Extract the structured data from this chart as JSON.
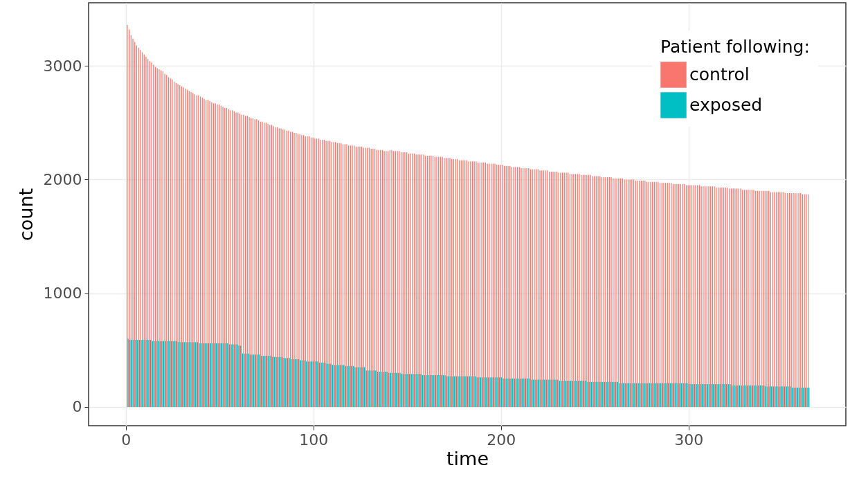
{
  "chart_data": {
    "type": "bar",
    "xlabel": "time",
    "ylabel": "count",
    "legend_title": "Patient following:",
    "legend": "top right",
    "grid": true,
    "xlim": [
      -18,
      382
    ],
    "xticks": [
      0,
      100,
      200,
      300
    ],
    "ylim": [
      -165,
      3555
    ],
    "yticks": [
      0,
      1000,
      2000,
      3000
    ],
    "x": [
      1,
      2,
      3,
      4,
      5,
      6,
      7,
      8,
      9,
      10,
      11,
      12,
      13,
      14,
      15,
      16,
      17,
      18,
      19,
      20,
      21,
      22,
      23,
      24,
      25,
      26,
      27,
      28,
      29,
      30,
      31,
      32,
      33,
      34,
      35,
      36,
      37,
      38,
      39,
      40,
      41,
      42,
      43,
      44,
      45,
      46,
      47,
      48,
      49,
      50,
      51,
      52,
      53,
      54,
      55,
      56,
      57,
      58,
      59,
      60,
      61,
      62,
      63,
      64,
      65,
      66,
      67,
      68,
      69,
      70,
      71,
      72,
      73,
      74,
      75,
      76,
      77,
      78,
      79,
      80,
      81,
      82,
      83,
      84,
      85,
      86,
      87,
      88,
      89,
      90,
      91,
      92,
      93,
      94,
      95,
      96,
      97,
      98,
      99,
      100,
      101,
      102,
      103,
      104,
      105,
      106,
      107,
      108,
      109,
      110,
      111,
      112,
      113,
      114,
      115,
      116,
      117,
      118,
      119,
      120,
      121,
      122,
      123,
      124,
      125,
      126,
      127,
      128,
      129,
      130,
      131,
      132,
      133,
      134,
      135,
      136,
      137,
      138,
      139,
      140,
      141,
      142,
      143,
      144,
      145,
      146,
      147,
      148,
      149,
      150,
      151,
      152,
      153,
      154,
      155,
      156,
      157,
      158,
      159,
      160,
      161,
      162,
      163,
      164,
      165,
      166,
      167,
      168,
      169,
      170,
      171,
      172,
      173,
      174,
      175,
      176,
      177,
      178,
      179,
      180,
      181,
      182,
      183,
      184,
      185,
      186,
      187,
      188,
      189,
      190,
      191,
      192,
      193,
      194,
      195,
      196,
      197,
      198,
      199,
      200,
      201,
      202,
      203,
      204,
      205,
      206,
      207,
      208,
      209,
      210,
      211,
      212,
      213,
      214,
      215,
      216,
      217,
      218,
      219,
      220,
      221,
      222,
      223,
      224,
      225,
      226,
      227,
      228,
      229,
      230,
      231,
      232,
      233,
      234,
      235,
      236,
      237,
      238,
      239,
      240,
      241,
      242,
      243,
      244,
      245,
      246,
      247,
      248,
      249,
      250,
      251,
      252,
      253,
      254,
      255,
      256,
      257,
      258,
      259,
      260,
      261,
      262,
      263,
      264,
      265,
      266,
      267,
      268,
      269,
      270,
      271,
      272,
      273,
      274,
      275,
      276,
      277,
      278,
      279,
      280,
      281,
      282,
      283,
      284,
      285,
      286,
      287,
      288,
      289,
      290,
      291,
      292,
      293,
      294,
      295,
      296,
      297,
      298,
      299,
      300,
      301,
      302,
      303,
      304,
      305,
      306,
      307,
      308,
      309,
      310,
      311,
      312,
      313,
      314,
      315,
      316,
      317,
      318,
      319,
      320,
      321,
      322,
      323,
      324,
      325,
      326,
      327,
      328,
      329,
      330,
      331,
      332,
      333,
      334,
      335,
      336,
      337,
      338,
      339,
      340,
      341,
      342,
      343,
      344,
      345,
      346,
      347,
      348,
      349,
      350,
      351,
      352,
      353,
      354,
      355,
      356,
      357,
      358,
      359,
      360,
      361,
      362,
      363,
      364
    ],
    "series": [
      {
        "name": "control",
        "color": "#f8766d",
        "values": [
          3360,
          3320,
          3270,
          3240,
          3210,
          3180,
          3160,
          3140,
          3120,
          3100,
          3080,
          3060,
          3040,
          3030,
          3010,
          2990,
          2980,
          2970,
          2960,
          2950,
          2930,
          2920,
          2900,
          2890,
          2880,
          2860,
          2850,
          2840,
          2830,
          2820,
          2810,
          2800,
          2790,
          2780,
          2770,
          2760,
          2750,
          2740,
          2740,
          2730,
          2720,
          2710,
          2700,
          2700,
          2690,
          2680,
          2670,
          2670,
          2660,
          2660,
          2650,
          2640,
          2630,
          2630,
          2620,
          2610,
          2610,
          2600,
          2590,
          2590,
          2580,
          2570,
          2570,
          2560,
          2560,
          2550,
          2540,
          2540,
          2530,
          2530,
          2520,
          2510,
          2510,
          2500,
          2500,
          2490,
          2480,
          2480,
          2470,
          2460,
          2460,
          2450,
          2450,
          2440,
          2440,
          2430,
          2430,
          2420,
          2420,
          2410,
          2410,
          2400,
          2400,
          2390,
          2390,
          2380,
          2380,
          2380,
          2370,
          2370,
          2360,
          2360,
          2360,
          2350,
          2350,
          2350,
          2340,
          2340,
          2340,
          2330,
          2330,
          2330,
          2320,
          2320,
          2320,
          2310,
          2310,
          2310,
          2300,
          2300,
          2300,
          2300,
          2290,
          2290,
          2290,
          2290,
          2280,
          2280,
          2280,
          2280,
          2270,
          2270,
          2270,
          2260,
          2260,
          2260,
          2260,
          2250,
          2250,
          2250,
          2260,
          2260,
          2250,
          2250,
          2250,
          2250,
          2240,
          2240,
          2240,
          2240,
          2230,
          2230,
          2230,
          2230,
          2220,
          2220,
          2220,
          2220,
          2220,
          2210,
          2210,
          2210,
          2210,
          2210,
          2200,
          2200,
          2200,
          2200,
          2200,
          2190,
          2190,
          2190,
          2190,
          2180,
          2180,
          2180,
          2180,
          2170,
          2170,
          2170,
          2170,
          2170,
          2160,
          2160,
          2160,
          2160,
          2160,
          2150,
          2150,
          2150,
          2150,
          2150,
          2140,
          2140,
          2140,
          2140,
          2140,
          2130,
          2130,
          2130,
          2130,
          2120,
          2120,
          2120,
          2120,
          2110,
          2110,
          2110,
          2110,
          2110,
          2100,
          2100,
          2100,
          2100,
          2100,
          2090,
          2090,
          2090,
          2090,
          2090,
          2080,
          2080,
          2080,
          2080,
          2080,
          2070,
          2070,
          2070,
          2070,
          2070,
          2060,
          2060,
          2060,
          2060,
          2060,
          2060,
          2050,
          2050,
          2050,
          2050,
          2050,
          2050,
          2040,
          2040,
          2040,
          2040,
          2040,
          2040,
          2030,
          2030,
          2030,
          2030,
          2030,
          2020,
          2020,
          2020,
          2020,
          2020,
          2020,
          2010,
          2010,
          2010,
          2010,
          2010,
          2010,
          2000,
          2000,
          2000,
          2000,
          2000,
          2000,
          1990,
          1990,
          1990,
          1990,
          1990,
          1990,
          1980,
          1980,
          1980,
          1980,
          1980,
          1980,
          1980,
          1970,
          1970,
          1970,
          1970,
          1970,
          1970,
          1970,
          1960,
          1960,
          1960,
          1960,
          1960,
          1960,
          1960,
          1950,
          1950,
          1950,
          1950,
          1950,
          1950,
          1950,
          1950,
          1940,
          1940,
          1940,
          1940,
          1940,
          1940,
          1940,
          1940,
          1930,
          1930,
          1930,
          1930,
          1930,
          1930,
          1930,
          1920,
          1920,
          1920,
          1920,
          1920,
          1920,
          1920,
          1910,
          1910,
          1910,
          1910,
          1910,
          1910,
          1910,
          1900,
          1900,
          1900,
          1900,
          1900,
          1900,
          1900,
          1900,
          1890,
          1890,
          1890,
          1890,
          1890,
          1890,
          1890,
          1890,
          1880,
          1880,
          1880,
          1880,
          1880,
          1880,
          1880,
          1880,
          1880,
          1870,
          1870,
          1870,
          1870
        ]
      },
      {
        "name": "exposed",
        "color": "#00bfc4",
        "values": [
          600,
          590,
          590,
          590,
          590,
          590,
          590,
          590,
          590,
          590,
          590,
          590,
          590,
          580,
          580,
          580,
          580,
          580,
          580,
          580,
          580,
          580,
          580,
          580,
          580,
          580,
          580,
          570,
          570,
          570,
          570,
          570,
          570,
          570,
          570,
          570,
          570,
          570,
          560,
          560,
          560,
          560,
          560,
          560,
          560,
          560,
          560,
          560,
          560,
          560,
          560,
          560,
          560,
          560,
          550,
          550,
          550,
          550,
          550,
          540,
          540,
          470,
          470,
          470,
          470,
          460,
          460,
          460,
          460,
          460,
          460,
          450,
          450,
          450,
          450,
          450,
          450,
          440,
          440,
          440,
          440,
          440,
          440,
          430,
          430,
          430,
          430,
          420,
          420,
          420,
          420,
          420,
          410,
          410,
          410,
          400,
          400,
          400,
          400,
          400,
          400,
          400,
          390,
          390,
          390,
          390,
          380,
          380,
          380,
          370,
          370,
          370,
          370,
          370,
          370,
          370,
          360,
          360,
          360,
          360,
          360,
          350,
          350,
          350,
          350,
          350,
          350,
          320,
          320,
          320,
          320,
          320,
          320,
          310,
          310,
          310,
          310,
          310,
          310,
          300,
          300,
          300,
          300,
          300,
          300,
          300,
          290,
          290,
          290,
          290,
          290,
          290,
          290,
          290,
          290,
          290,
          290,
          280,
          280,
          280,
          280,
          280,
          280,
          280,
          280,
          280,
          280,
          280,
          280,
          280,
          270,
          270,
          270,
          270,
          270,
          270,
          270,
          270,
          270,
          270,
          270,
          270,
          270,
          270,
          270,
          270,
          260,
          260,
          260,
          260,
          260,
          260,
          260,
          260,
          260,
          260,
          260,
          260,
          260,
          260,
          250,
          250,
          250,
          250,
          250,
          250,
          250,
          250,
          250,
          250,
          250,
          250,
          250,
          250,
          250,
          240,
          240,
          240,
          240,
          240,
          240,
          240,
          240,
          240,
          240,
          240,
          240,
          240,
          240,
          240,
          230,
          230,
          230,
          230,
          230,
          230,
          230,
          230,
          230,
          230,
          230,
          230,
          230,
          230,
          230,
          220,
          220,
          220,
          220,
          220,
          220,
          220,
          220,
          220,
          220,
          220,
          220,
          220,
          220,
          220,
          220,
          220,
          210,
          210,
          210,
          210,
          210,
          210,
          210,
          210,
          210,
          210,
          210,
          210,
          210,
          210,
          210,
          210,
          210,
          210,
          210,
          210,
          210,
          210,
          210,
          210,
          210,
          210,
          210,
          210,
          210,
          210,
          210,
          210,
          210,
          210,
          210,
          210,
          210,
          200,
          200,
          200,
          200,
          200,
          200,
          200,
          200,
          200,
          200,
          200,
          200,
          200,
          200,
          200,
          200,
          200,
          200,
          200,
          200,
          200,
          200,
          200,
          190,
          190,
          190,
          190,
          190,
          190,
          190,
          190,
          190,
          190,
          190,
          190,
          190,
          190,
          190,
          190,
          190,
          190,
          180,
          180,
          180,
          180,
          180,
          180,
          180,
          180,
          180,
          180,
          180,
          180,
          180,
          180,
          170,
          170,
          170,
          170,
          170,
          170,
          170,
          170,
          170,
          170
        ]
      }
    ]
  }
}
